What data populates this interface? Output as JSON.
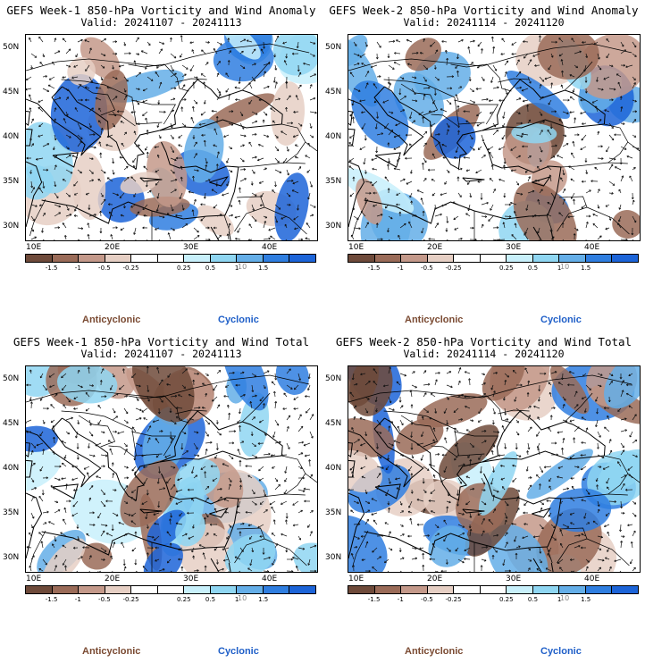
{
  "panels": [
    {
      "title": "GEFS Week-1 850-hPa Vorticity and Wind Anomaly",
      "valid": "Valid: 20241107 - 20241113",
      "kind": "anomaly",
      "seed": 11
    },
    {
      "title": "GEFS Week-2 850-hPa Vorticity and Wind Anomaly",
      "valid": "Valid: 20241114 - 20241120",
      "kind": "anomaly",
      "seed": 23
    },
    {
      "title": "GEFS Week-1 850-hPa Vorticity and Wind Total",
      "valid": "Valid: 20241107 - 20241113",
      "kind": "total",
      "seed": 37
    },
    {
      "title": "GEFS Week-2 850-hPa Vorticity and Wind Total",
      "valid": "Valid: 20241114 - 20241120",
      "kind": "total",
      "seed": 51
    }
  ],
  "axes": {
    "lat_labels": [
      "50N",
      "45N",
      "40N",
      "35N",
      "30N"
    ],
    "lat_values": [
      50,
      45,
      40,
      35,
      30
    ],
    "lon_labels": [
      "10E",
      "20E",
      "30E",
      "40E"
    ],
    "lon_values": [
      10,
      20,
      30,
      40
    ],
    "lat_range": [
      28.5,
      51.5
    ],
    "lon_range": [
      9,
      46
    ]
  },
  "colorbar": {
    "labels": [
      "-1.5",
      "-1",
      "-0.5",
      "-0.25",
      "0.25",
      "0.5",
      "1",
      "1.5"
    ],
    "colors": [
      "#6e4a3a",
      "#9a6b58",
      "#c4998a",
      "#e6cfc4",
      "#ffffff",
      "#ffffff",
      "#c8f0fb",
      "#8fd6f2",
      "#64aee8",
      "#2f7ee0",
      "#1c64d8"
    ],
    "watermark": "10"
  },
  "legend": {
    "anticyclonic": "Anticyclonic",
    "cyclonic": "Cyclonic",
    "anticyclonic_color": "#7a4a32",
    "cyclonic_color": "#1f5fc8"
  }
}
